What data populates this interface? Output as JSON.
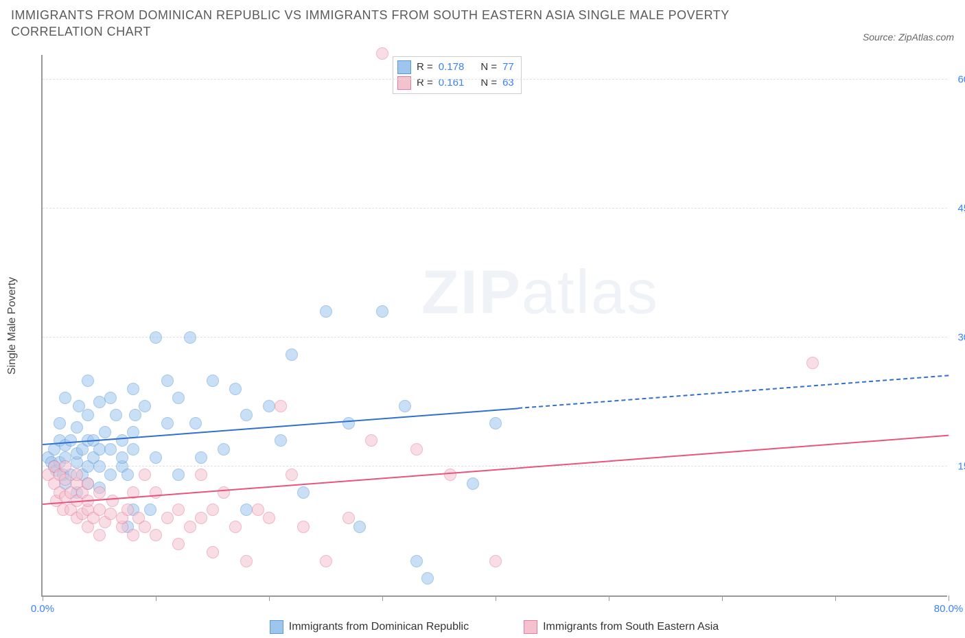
{
  "title": "IMMIGRANTS FROM DOMINICAN REPUBLIC VS IMMIGRANTS FROM SOUTH EASTERN ASIA SINGLE MALE POVERTY CORRELATION CHART",
  "source_label": "Source: ZipAtlas.com",
  "ylabel": "Single Male Poverty",
  "watermark_bold": "ZIP",
  "watermark_light": "atlas",
  "chart": {
    "type": "scatter",
    "xlim": [
      0,
      80
    ],
    "ylim": [
      0,
      63
    ],
    "xtick_positions": [
      0,
      10,
      20,
      30,
      40,
      50,
      60,
      70,
      80
    ],
    "xtick_labels_shown": {
      "0": "0.0%",
      "80": "80.0%"
    },
    "ytick_positions": [
      15,
      30,
      45,
      60
    ],
    "ytick_labels": {
      "15": "15.0%",
      "30": "30.0%",
      "45": "45.0%",
      "60": "60.0%"
    },
    "gridline_positions": [
      15,
      30,
      45,
      60
    ],
    "grid_color": "#e0e0e0",
    "background_color": "#ffffff",
    "axis_color": "#999999",
    "tick_label_color": "#3b82f6",
    "marker_radius": 9,
    "marker_opacity": 0.55,
    "series": [
      {
        "id": "dominican",
        "label": "Immigrants from Dominican Republic",
        "fill": "#9ec5ed",
        "stroke": "#5b9bd5",
        "R": "0.178",
        "N": "77",
        "trend": {
          "y_at_xmin": 17.5,
          "y_at_xmax": 25.5,
          "solid_until_x": 42,
          "color": "#2f6fd0",
          "width": 2.5
        },
        "points": [
          [
            0.5,
            16
          ],
          [
            0.8,
            15.5
          ],
          [
            1,
            15
          ],
          [
            1,
            17
          ],
          [
            1.2,
            14.5
          ],
          [
            1.5,
            15.5
          ],
          [
            1.5,
            18
          ],
          [
            1.5,
            20
          ],
          [
            1.8,
            14
          ],
          [
            2,
            13
          ],
          [
            2,
            16
          ],
          [
            2,
            17.5
          ],
          [
            2,
            23
          ],
          [
            2.5,
            14
          ],
          [
            2.5,
            18
          ],
          [
            3,
            12
          ],
          [
            3,
            15.5
          ],
          [
            3,
            16.5
          ],
          [
            3,
            19.5
          ],
          [
            3.2,
            22
          ],
          [
            3.5,
            14
          ],
          [
            3.5,
            17
          ],
          [
            4,
            13
          ],
          [
            4,
            15
          ],
          [
            4,
            18
          ],
          [
            4,
            21
          ],
          [
            4,
            25
          ],
          [
            4.5,
            16
          ],
          [
            4.5,
            18
          ],
          [
            5,
            12.5
          ],
          [
            5,
            15
          ],
          [
            5,
            17
          ],
          [
            5,
            22.5
          ],
          [
            5.5,
            19
          ],
          [
            6,
            14
          ],
          [
            6,
            17
          ],
          [
            6,
            23
          ],
          [
            6.5,
            21
          ],
          [
            7,
            15
          ],
          [
            7,
            18
          ],
          [
            7,
            16
          ],
          [
            7.5,
            8
          ],
          [
            7.5,
            14
          ],
          [
            8,
            10
          ],
          [
            8,
            17
          ],
          [
            8,
            19
          ],
          [
            8,
            24
          ],
          [
            8.2,
            21
          ],
          [
            9,
            22
          ],
          [
            9.5,
            10
          ],
          [
            10,
            16
          ],
          [
            10,
            30
          ],
          [
            11,
            20
          ],
          [
            11,
            25
          ],
          [
            12,
            14
          ],
          [
            12,
            23
          ],
          [
            13,
            30
          ],
          [
            13.5,
            20
          ],
          [
            14,
            16
          ],
          [
            15,
            25
          ],
          [
            16,
            17
          ],
          [
            17,
            24
          ],
          [
            18,
            10
          ],
          [
            18,
            21
          ],
          [
            20,
            22
          ],
          [
            21,
            18
          ],
          [
            22,
            28
          ],
          [
            23,
            12
          ],
          [
            25,
            33
          ],
          [
            27,
            20
          ],
          [
            28,
            8
          ],
          [
            30,
            33
          ],
          [
            32,
            22
          ],
          [
            33,
            4
          ],
          [
            34,
            2
          ],
          [
            38,
            13
          ],
          [
            40,
            20
          ]
        ]
      },
      {
        "id": "se_asia",
        "label": "Immigrants from South Eastern Asia",
        "fill": "#f4c2cf",
        "stroke": "#e97ba0",
        "R": "0.161",
        "N": "63",
        "trend": {
          "y_at_xmin": 10.5,
          "y_at_xmax": 18.5,
          "solid_until_x": 80,
          "color": "#e8547c",
          "width": 2.5
        },
        "points": [
          [
            0.5,
            14
          ],
          [
            1,
            13
          ],
          [
            1,
            15
          ],
          [
            1.2,
            11
          ],
          [
            1.5,
            12
          ],
          [
            1.5,
            14
          ],
          [
            1.8,
            10
          ],
          [
            2,
            11.5
          ],
          [
            2,
            13.5
          ],
          [
            2,
            15
          ],
          [
            2.5,
            10
          ],
          [
            2.5,
            12
          ],
          [
            3,
            9
          ],
          [
            3,
            11
          ],
          [
            3,
            13
          ],
          [
            3,
            14
          ],
          [
            3.5,
            9.5
          ],
          [
            3.5,
            12
          ],
          [
            4,
            8
          ],
          [
            4,
            10
          ],
          [
            4,
            11
          ],
          [
            4,
            13
          ],
          [
            4.5,
            9
          ],
          [
            5,
            7
          ],
          [
            5,
            10
          ],
          [
            5,
            12
          ],
          [
            5.5,
            8.5
          ],
          [
            6,
            9.5
          ],
          [
            6.2,
            11
          ],
          [
            7,
            8
          ],
          [
            7,
            9
          ],
          [
            7.5,
            10
          ],
          [
            8,
            7
          ],
          [
            8,
            12
          ],
          [
            8.5,
            9
          ],
          [
            9,
            8
          ],
          [
            9,
            14
          ],
          [
            10,
            7
          ],
          [
            10,
            12
          ],
          [
            11,
            9
          ],
          [
            12,
            6
          ],
          [
            12,
            10
          ],
          [
            13,
            8
          ],
          [
            14,
            9
          ],
          [
            14,
            14
          ],
          [
            15,
            5
          ],
          [
            15,
            10
          ],
          [
            16,
            12
          ],
          [
            17,
            8
          ],
          [
            18,
            4
          ],
          [
            19,
            10
          ],
          [
            20,
            9
          ],
          [
            21,
            22
          ],
          [
            22,
            14
          ],
          [
            23,
            8
          ],
          [
            25,
            4
          ],
          [
            27,
            9
          ],
          [
            29,
            18
          ],
          [
            30,
            63
          ],
          [
            33,
            17
          ],
          [
            36,
            14
          ],
          [
            40,
            4
          ],
          [
            68,
            27
          ]
        ]
      }
    ],
    "legend_box": {
      "rows": [
        {
          "swatch_fill": "#9ec5ed",
          "swatch_stroke": "#5b9bd5",
          "r_label": "R =",
          "r_val": "0.178",
          "n_label": "N =",
          "n_val": "77"
        },
        {
          "swatch_fill": "#f4c2cf",
          "swatch_stroke": "#e97ba0",
          "r_label": "R =",
          "r_val": "0.161",
          "n_label": "N =",
          "n_val": "63"
        }
      ]
    }
  }
}
